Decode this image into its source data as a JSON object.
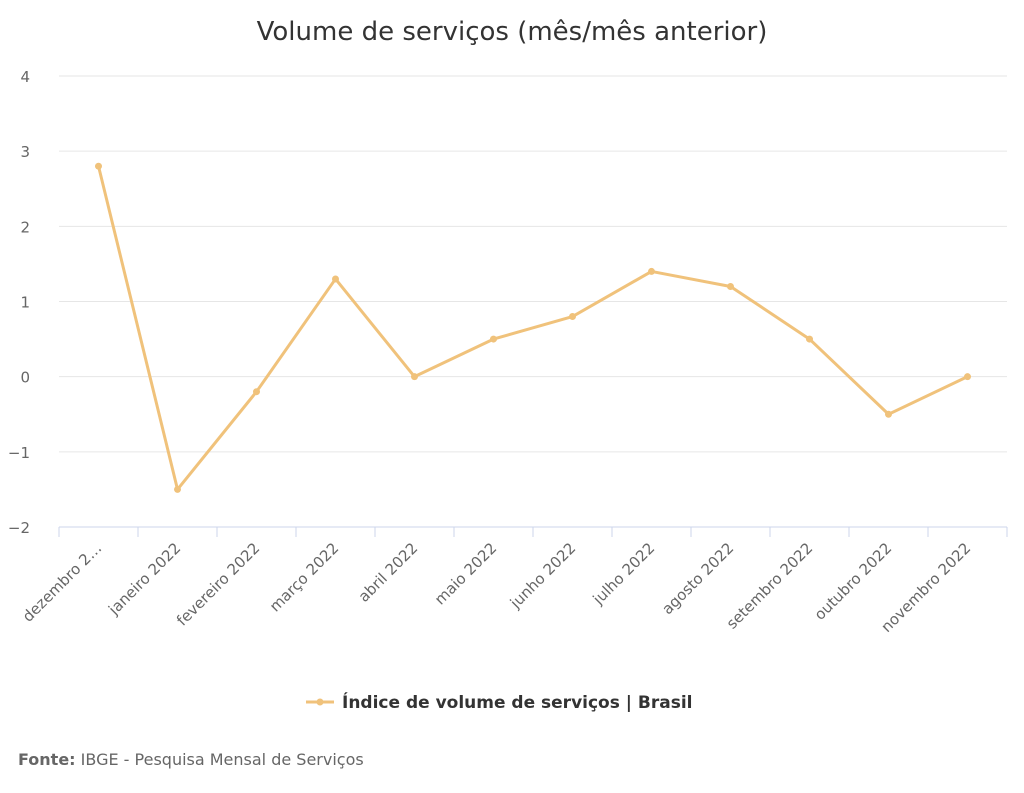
{
  "chart_data": {
    "type": "line",
    "title": "Volume de serviços (mês/mês anterior)",
    "categories": [
      "dezembro 2…",
      "janeiro 2022",
      "fevereiro 2022",
      "março 2022",
      "abril 2022",
      "maio 2022",
      "junho 2022",
      "julho 2022",
      "agosto 2022",
      "setembro 2022",
      "outubro 2022",
      "novembro 2022"
    ],
    "series": [
      {
        "name": "Índice de volume de serviços | Brasil",
        "values": [
          2.8,
          -1.5,
          -0.2,
          1.3,
          0.0,
          0.5,
          0.8,
          1.4,
          1.2,
          0.5,
          -0.5,
          0.0
        ]
      }
    ],
    "ylim": [
      -2,
      4
    ],
    "yticks": [
      "4",
      "3",
      "2",
      "1",
      "0",
      "−1",
      "−2"
    ],
    "grid": true,
    "legend_position": "bottom-center",
    "colors": {
      "series": "#f0c27b",
      "grid": "#e6e6e6",
      "axis": "#ccd6eb"
    }
  },
  "source": {
    "label": "Fonte:",
    "text": "IBGE - Pesquisa Mensal de Serviços"
  }
}
